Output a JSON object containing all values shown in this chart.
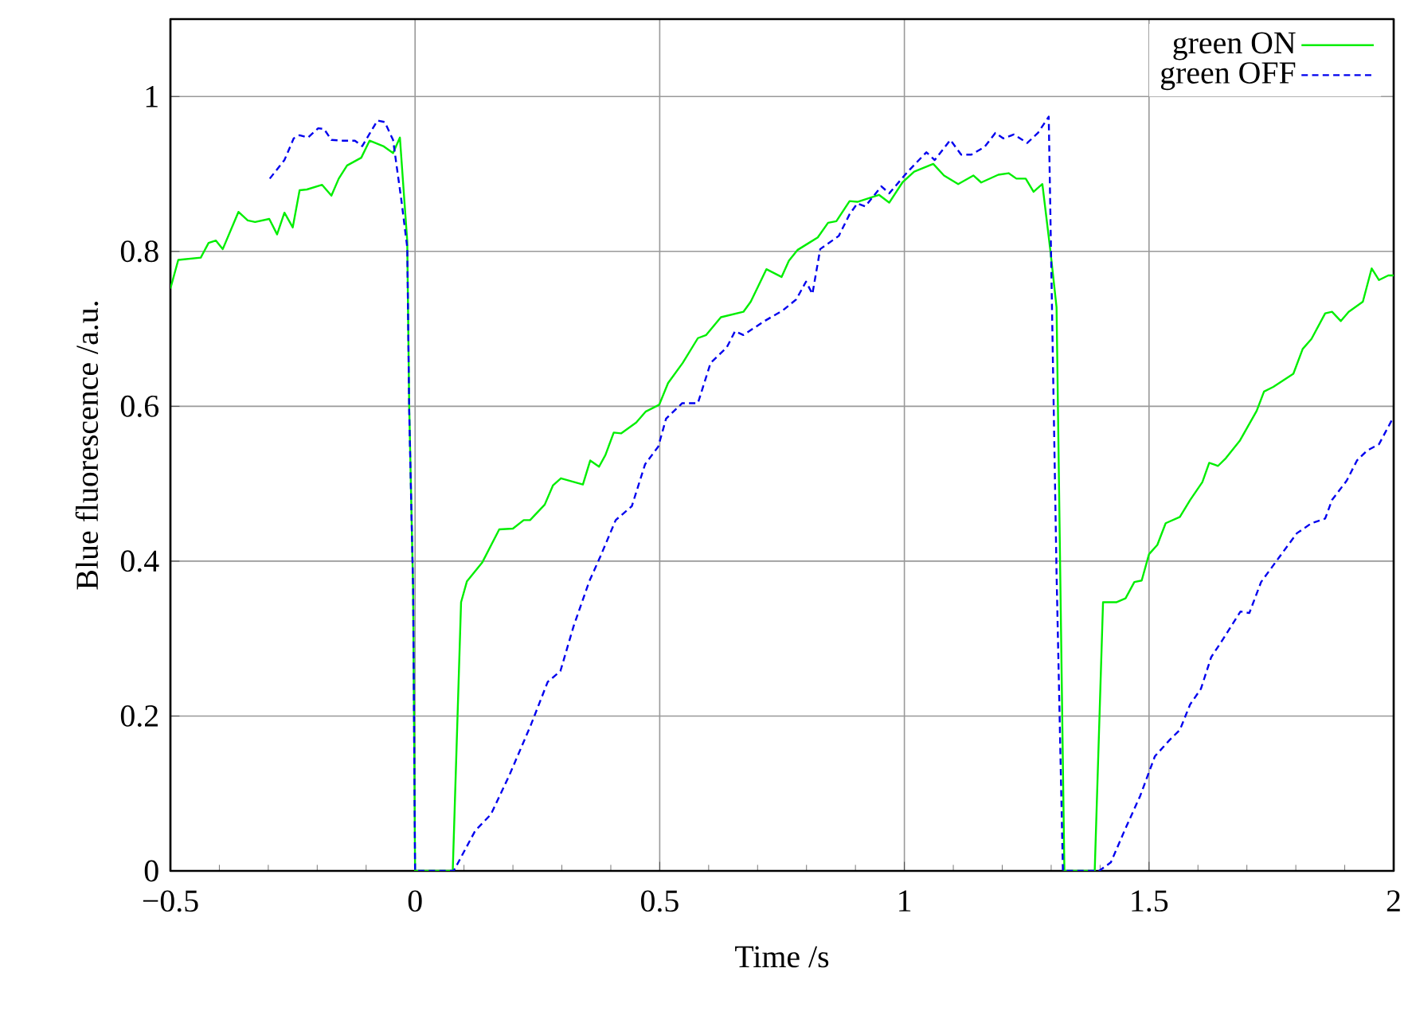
{
  "chart_data": {
    "type": "line",
    "xlabel": "Time /s",
    "ylabel": "Blue fluorescence /a.u.",
    "xlim": [
      -0.5,
      2
    ],
    "ylim": [
      0,
      1.1
    ],
    "xticks": [
      {
        "value": -0.5,
        "label": "−0.5"
      },
      0,
      0.5,
      1,
      1.5,
      2
    ],
    "yticks": [
      0,
      0.2,
      0.4,
      0.6,
      0.8,
      1
    ],
    "grid": true,
    "legend": "top right",
    "series": [
      {
        "name": "green ON",
        "color": "#00ee00",
        "line_style": "solid",
        "x": [
          -0.5,
          -0.484,
          -0.438,
          -0.422,
          -0.407,
          -0.393,
          -0.361,
          -0.342,
          -0.327,
          -0.298,
          -0.282,
          -0.267,
          -0.25,
          -0.236,
          -0.221,
          -0.19,
          -0.171,
          -0.156,
          -0.139,
          -0.11,
          -0.093,
          -0.065,
          -0.045,
          -0.031,
          -0.016,
          -0.012,
          -0.004,
          0.0,
          0.077,
          0.094,
          0.106,
          0.137,
          0.172,
          0.2,
          0.222,
          0.235,
          0.265,
          0.282,
          0.298,
          0.343,
          0.358,
          0.376,
          0.389,
          0.406,
          0.421,
          0.452,
          0.471,
          0.499,
          0.517,
          0.547,
          0.578,
          0.595,
          0.625,
          0.671,
          0.686,
          0.718,
          0.749,
          0.764,
          0.782,
          0.823,
          0.844,
          0.861,
          0.888,
          0.904,
          0.948,
          0.969,
          0.996,
          1.02,
          1.059,
          1.081,
          1.11,
          1.141,
          1.157,
          1.192,
          1.213,
          1.229,
          1.248,
          1.264,
          1.282,
          1.298,
          1.311,
          1.327,
          1.389,
          1.406,
          1.434,
          1.452,
          1.47,
          1.485,
          1.5,
          1.517,
          1.534,
          1.563,
          1.584,
          1.609,
          1.623,
          1.641,
          1.657,
          1.686,
          1.72,
          1.735,
          1.754,
          1.795,
          1.814,
          1.832,
          1.86,
          1.874,
          1.892,
          1.908,
          1.937,
          1.955,
          1.97,
          1.989,
          2.0
        ],
        "values": [
          0.752,
          0.789,
          0.792,
          0.811,
          0.814,
          0.803,
          0.851,
          0.84,
          0.838,
          0.842,
          0.822,
          0.85,
          0.831,
          0.879,
          0.88,
          0.886,
          0.872,
          0.894,
          0.911,
          0.921,
          0.943,
          0.936,
          0.927,
          0.947,
          0.813,
          0.6,
          0.364,
          0,
          0,
          0.347,
          0.374,
          0.398,
          0.441,
          0.442,
          0.453,
          0.453,
          0.473,
          0.498,
          0.507,
          0.499,
          0.53,
          0.522,
          0.537,
          0.566,
          0.565,
          0.579,
          0.593,
          0.602,
          0.63,
          0.656,
          0.688,
          0.692,
          0.715,
          0.722,
          0.735,
          0.777,
          0.767,
          0.788,
          0.802,
          0.818,
          0.837,
          0.839,
          0.865,
          0.864,
          0.873,
          0.863,
          0.889,
          0.903,
          0.913,
          0.898,
          0.887,
          0.898,
          0.889,
          0.899,
          0.901,
          0.894,
          0.894,
          0.877,
          0.887,
          0.803,
          0.728,
          0,
          0,
          0.347,
          0.347,
          0.352,
          0.373,
          0.375,
          0.409,
          0.421,
          0.449,
          0.457,
          0.479,
          0.502,
          0.527,
          0.523,
          0.533,
          0.556,
          0.594,
          0.619,
          0.625,
          0.642,
          0.674,
          0.687,
          0.72,
          0.722,
          0.71,
          0.722,
          0.735,
          0.778,
          0.763,
          0.769,
          0.769
        ]
      },
      {
        "name": "green OFF",
        "color": "#0000ee",
        "line_style": "dashed",
        "x": [
          -0.297,
          -0.267,
          -0.248,
          -0.236,
          -0.219,
          -0.198,
          -0.186,
          -0.171,
          -0.147,
          -0.123,
          -0.108,
          -0.091,
          -0.077,
          -0.062,
          -0.045,
          -0.028,
          -0.016,
          -0.012,
          -0.004,
          0.0,
          0.079,
          0.123,
          0.155,
          0.193,
          0.237,
          0.271,
          0.297,
          0.324,
          0.356,
          0.378,
          0.41,
          0.443,
          0.47,
          0.497,
          0.513,
          0.546,
          0.578,
          0.604,
          0.637,
          0.654,
          0.671,
          0.714,
          0.752,
          0.779,
          0.799,
          0.812,
          0.828,
          0.866,
          0.888,
          0.904,
          0.92,
          0.953,
          0.969,
          1.007,
          1.045,
          1.062,
          1.094,
          1.116,
          1.137,
          1.164,
          1.186,
          1.202,
          1.224,
          1.251,
          1.273,
          1.295,
          1.3,
          1.311,
          1.324,
          1.398,
          1.422,
          1.452,
          1.482,
          1.512,
          1.542,
          1.563,
          1.584,
          1.606,
          1.627,
          1.651,
          1.687,
          1.705,
          1.729,
          1.766,
          1.802,
          1.832,
          1.86,
          1.874,
          1.904,
          1.925,
          1.946,
          1.97,
          1.997
        ],
        "values": [
          0.894,
          0.918,
          0.946,
          0.95,
          0.947,
          0.959,
          0.958,
          0.944,
          0.943,
          0.943,
          0.936,
          0.954,
          0.969,
          0.967,
          0.944,
          0.866,
          0.805,
          0.593,
          0.364,
          0,
          0,
          0.052,
          0.073,
          0.124,
          0.189,
          0.244,
          0.258,
          0.316,
          0.374,
          0.405,
          0.453,
          0.471,
          0.525,
          0.548,
          0.584,
          0.604,
          0.604,
          0.656,
          0.676,
          0.697,
          0.692,
          0.71,
          0.724,
          0.738,
          0.761,
          0.745,
          0.803,
          0.82,
          0.848,
          0.862,
          0.858,
          0.884,
          0.875,
          0.903,
          0.928,
          0.918,
          0.944,
          0.925,
          0.925,
          0.935,
          0.953,
          0.946,
          0.951,
          0.94,
          0.953,
          0.974,
          0.789,
          0.385,
          0,
          0,
          0.011,
          0.055,
          0.097,
          0.148,
          0.169,
          0.182,
          0.215,
          0.235,
          0.276,
          0.299,
          0.335,
          0.333,
          0.373,
          0.405,
          0.436,
          0.449,
          0.455,
          0.479,
          0.504,
          0.53,
          0.543,
          0.551,
          0.583
        ]
      }
    ]
  }
}
